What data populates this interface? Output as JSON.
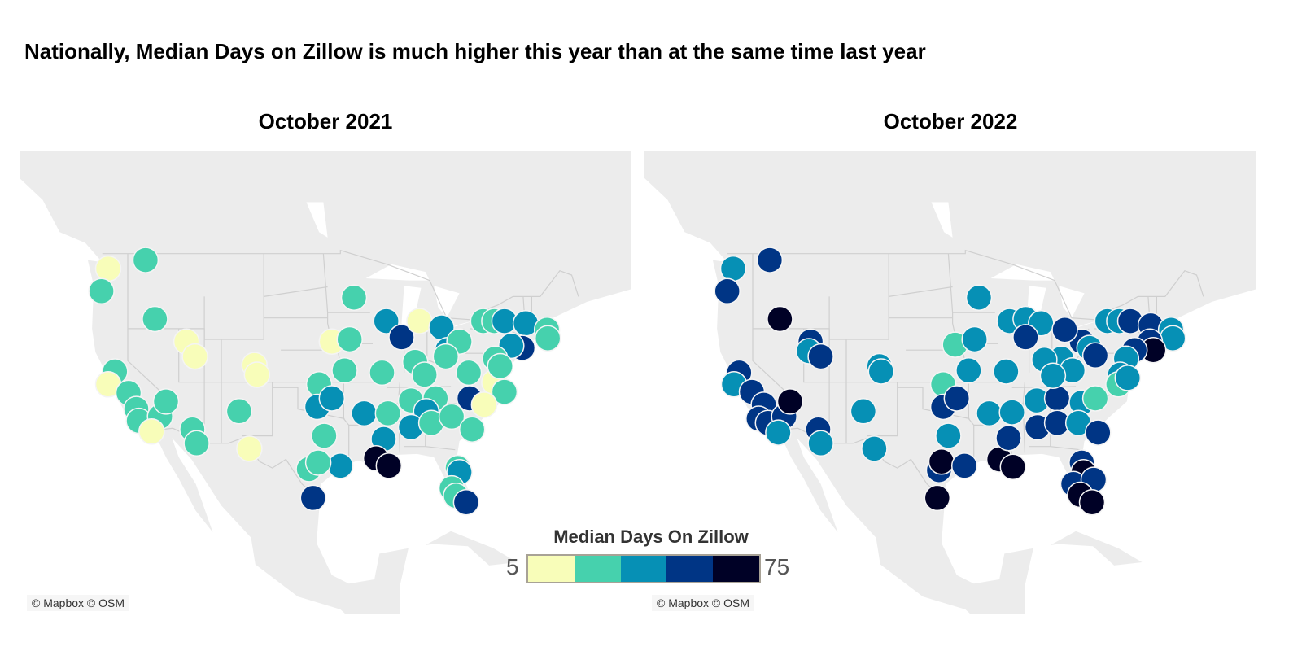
{
  "title": "Nationally, Median Days on Zillow is much higher this year than at the same time last year",
  "attribution": "© Mapbox © OSM",
  "legend": {
    "title": "Median Days On Zillow",
    "min": "5",
    "max": "75",
    "colors": [
      "#f8fdb9",
      "#46d1ad",
      "#0690b5",
      "#003585",
      "#000126"
    ]
  },
  "chart_data": {
    "type": "scatter",
    "subtype": "symbol-map",
    "point_format": [
      "lon",
      "lat",
      "color_bin"
    ],
    "color_scale": {
      "min": 5,
      "max": 75,
      "bins": 5
    },
    "panels": [
      {
        "title": "October 2021",
        "points": [
          [
            -122.3,
            47.6,
            0
          ],
          [
            -117.9,
            48.4,
            1
          ],
          [
            -123.1,
            45.5,
            1
          ],
          [
            -116.8,
            42.9,
            1
          ],
          [
            -113.1,
            40.8,
            0
          ],
          [
            -112.1,
            39.4,
            0
          ],
          [
            -105.1,
            38.6,
            0
          ],
          [
            -104.8,
            37.7,
            0
          ],
          [
            -121.5,
            38.0,
            1
          ],
          [
            -122.3,
            36.8,
            0
          ],
          [
            -119.9,
            36.0,
            1
          ],
          [
            -119.0,
            34.5,
            1
          ],
          [
            -118.7,
            33.4,
            1
          ],
          [
            -116.2,
            33.8,
            1
          ],
          [
            -115.5,
            35.2,
            1
          ],
          [
            -117.2,
            32.4,
            0
          ],
          [
            -112.4,
            32.6,
            1
          ],
          [
            -111.9,
            31.3,
            1
          ],
          [
            -106.9,
            34.3,
            1
          ],
          [
            -105.7,
            30.8,
            0
          ],
          [
            -93.4,
            44.9,
            1
          ],
          [
            -89.6,
            42.7,
            2
          ],
          [
            -87.8,
            41.2,
            3
          ],
          [
            -85.7,
            42.7,
            0
          ],
          [
            -96.0,
            40.8,
            0
          ],
          [
            -93.9,
            41.0,
            1
          ],
          [
            -94.5,
            38.1,
            1
          ],
          [
            -90.1,
            37.9,
            1
          ],
          [
            -97.5,
            36.8,
            1
          ],
          [
            -97.7,
            34.7,
            2
          ],
          [
            -96.0,
            35.5,
            2
          ],
          [
            -96.9,
            32.0,
            1
          ],
          [
            -92.2,
            34.1,
            2
          ],
          [
            -89.4,
            34.1,
            1
          ],
          [
            -89.9,
            31.7,
            2
          ],
          [
            -90.8,
            29.9,
            4
          ],
          [
            -89.3,
            29.2,
            4
          ],
          [
            -95.0,
            29.2,
            2
          ],
          [
            -98.7,
            28.9,
            1
          ],
          [
            -97.6,
            29.5,
            1
          ],
          [
            -98.2,
            26.2,
            3
          ],
          [
            -83.1,
            42.1,
            2
          ],
          [
            -82.4,
            40.0,
            2
          ],
          [
            -81.0,
            40.8,
            1
          ],
          [
            -79.9,
            37.9,
            1
          ],
          [
            -86.2,
            38.9,
            1
          ],
          [
            -85.1,
            37.7,
            1
          ],
          [
            -82.6,
            39.4,
            1
          ],
          [
            -78.2,
            42.7,
            1
          ],
          [
            -76.9,
            42.7,
            1
          ],
          [
            -75.7,
            42.7,
            2
          ],
          [
            -73.2,
            42.5,
            2
          ],
          [
            -70.7,
            41.9,
            1
          ],
          [
            -70.6,
            41.1,
            1
          ],
          [
            -73.6,
            40.2,
            3
          ],
          [
            -74.9,
            40.4,
            2
          ],
          [
            -76.9,
            37.0,
            0
          ],
          [
            -75.7,
            36.1,
            1
          ],
          [
            -76.8,
            39.2,
            1
          ],
          [
            -76.2,
            38.5,
            1
          ],
          [
            -79.8,
            35.5,
            3
          ],
          [
            -86.7,
            35.3,
            1
          ],
          [
            -83.8,
            35.5,
            1
          ],
          [
            -84.9,
            34.3,
            2
          ],
          [
            -86.7,
            32.8,
            2
          ],
          [
            -84.3,
            33.2,
            1
          ],
          [
            -81.9,
            33.8,
            1
          ],
          [
            -79.5,
            32.6,
            1
          ],
          [
            -81.2,
            29.0,
            1
          ],
          [
            -81.0,
            28.6,
            2
          ],
          [
            -81.9,
            27.1,
            1
          ],
          [
            -81.4,
            26.4,
            1
          ],
          [
            -80.2,
            25.8,
            3
          ],
          [
            -78.1,
            34.9,
            0
          ]
        ]
      },
      {
        "title": "October 2022",
        "points": [
          [
            -122.3,
            47.6,
            2
          ],
          [
            -118.0,
            48.4,
            3
          ],
          [
            -123.0,
            45.5,
            3
          ],
          [
            -116.8,
            42.9,
            4
          ],
          [
            -113.2,
            40.8,
            3
          ],
          [
            -113.4,
            39.9,
            2
          ],
          [
            -112.0,
            39.4,
            3
          ],
          [
            -105.1,
            38.5,
            2
          ],
          [
            -104.9,
            38.0,
            2
          ],
          [
            -121.6,
            37.9,
            3
          ],
          [
            -122.2,
            36.8,
            2
          ],
          [
            -120.1,
            36.1,
            3
          ],
          [
            -118.7,
            34.9,
            3
          ],
          [
            -119.3,
            33.6,
            3
          ],
          [
            -118.2,
            33.2,
            3
          ],
          [
            -116.3,
            33.8,
            3
          ],
          [
            -117.0,
            32.3,
            2
          ],
          [
            -115.6,
            35.2,
            4
          ],
          [
            -112.3,
            32.6,
            3
          ],
          [
            -112.0,
            31.3,
            2
          ],
          [
            -107.0,
            34.3,
            2
          ],
          [
            -105.7,
            30.8,
            2
          ],
          [
            -93.4,
            44.9,
            2
          ],
          [
            -89.8,
            42.7,
            2
          ],
          [
            -87.9,
            42.9,
            2
          ],
          [
            -86.1,
            42.5,
            2
          ],
          [
            -87.9,
            41.2,
            3
          ],
          [
            -96.2,
            40.5,
            1
          ],
          [
            -93.9,
            41.0,
            2
          ],
          [
            -97.6,
            36.8,
            1
          ],
          [
            -94.6,
            38.1,
            2
          ],
          [
            -90.2,
            38.0,
            2
          ],
          [
            -97.6,
            34.7,
            3
          ],
          [
            -96.0,
            35.5,
            3
          ],
          [
            -97.0,
            32.0,
            2
          ],
          [
            -98.1,
            28.8,
            3
          ],
          [
            -97.8,
            29.6,
            4
          ],
          [
            -95.1,
            29.2,
            3
          ],
          [
            -98.3,
            26.2,
            4
          ],
          [
            -91.0,
            29.8,
            4
          ],
          [
            -89.4,
            29.1,
            4
          ],
          [
            -89.9,
            31.8,
            3
          ],
          [
            -92.2,
            34.1,
            2
          ],
          [
            -89.5,
            34.2,
            2
          ],
          [
            -86.6,
            35.3,
            2
          ],
          [
            -84.2,
            35.5,
            3
          ],
          [
            -86.5,
            32.8,
            3
          ],
          [
            -84.2,
            33.2,
            3
          ],
          [
            -83.7,
            39.2,
            2
          ],
          [
            -85.7,
            39.1,
            2
          ],
          [
            -81.3,
            40.8,
            3
          ],
          [
            -80.4,
            40.2,
            2
          ],
          [
            -79.7,
            39.5,
            3
          ],
          [
            -83.3,
            41.9,
            3
          ],
          [
            -82.4,
            38.1,
            2
          ],
          [
            -84.7,
            37.6,
            2
          ],
          [
            -78.3,
            42.7,
            2
          ],
          [
            -76.9,
            42.7,
            2
          ],
          [
            -75.6,
            42.7,
            3
          ],
          [
            -73.2,
            42.3,
            3
          ],
          [
            -70.8,
            41.9,
            2
          ],
          [
            -70.6,
            41.1,
            2
          ],
          [
            -73.3,
            40.8,
            3
          ],
          [
            -72.9,
            40.0,
            4
          ],
          [
            -75.1,
            40.0,
            3
          ],
          [
            -76.1,
            39.2,
            2
          ],
          [
            -76.8,
            37.7,
            2
          ],
          [
            -77.0,
            36.8,
            1
          ],
          [
            -75.9,
            37.4,
            2
          ],
          [
            -81.3,
            35.1,
            2
          ],
          [
            -79.7,
            35.5,
            1
          ],
          [
            -81.7,
            33.2,
            2
          ],
          [
            -79.4,
            32.3,
            3
          ],
          [
            -81.3,
            29.5,
            3
          ],
          [
            -81.1,
            28.6,
            4
          ],
          [
            -82.3,
            27.5,
            3
          ],
          [
            -79.9,
            27.9,
            3
          ],
          [
            -81.5,
            26.5,
            4
          ],
          [
            -80.1,
            25.8,
            4
          ]
        ]
      }
    ]
  }
}
